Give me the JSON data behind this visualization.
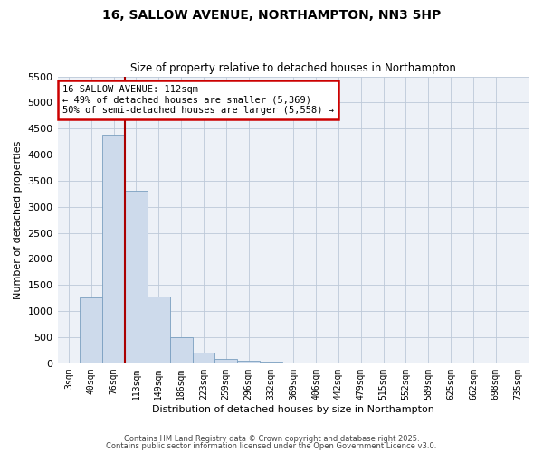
{
  "title1": "16, SALLOW AVENUE, NORTHAMPTON, NN3 5HP",
  "title2": "Size of property relative to detached houses in Northampton",
  "xlabel": "Distribution of detached houses by size in Northampton",
  "ylabel": "Number of detached properties",
  "categories": [
    "3sqm",
    "40sqm",
    "76sqm",
    "113sqm",
    "149sqm",
    "186sqm",
    "223sqm",
    "259sqm",
    "296sqm",
    "332sqm",
    "369sqm",
    "406sqm",
    "442sqm",
    "479sqm",
    "515sqm",
    "552sqm",
    "589sqm",
    "625sqm",
    "662sqm",
    "698sqm",
    "735sqm"
  ],
  "bar_heights": [
    0,
    1270,
    4380,
    3300,
    1280,
    500,
    210,
    80,
    50,
    30,
    0,
    0,
    0,
    0,
    0,
    0,
    0,
    0,
    0,
    0,
    0
  ],
  "bar_color": "#cddaeb",
  "bar_edge_color": "#7a9fc0",
  "vline_x": 2.5,
  "vline_color": "#aa0000",
  "ylim": [
    0,
    5500
  ],
  "yticks": [
    0,
    500,
    1000,
    1500,
    2000,
    2500,
    3000,
    3500,
    4000,
    4500,
    5000,
    5500
  ],
  "annotation_text": "16 SALLOW AVENUE: 112sqm\n← 49% of detached houses are smaller (5,369)\n50% of semi-detached houses are larger (5,558) →",
  "annotation_box_color": "#cc0000",
  "footer1": "Contains HM Land Registry data © Crown copyright and database right 2025.",
  "footer2": "Contains public sector information licensed under the Open Government Licence v3.0.",
  "bg_color": "#edf1f7",
  "grid_color": "#bdc9d8"
}
